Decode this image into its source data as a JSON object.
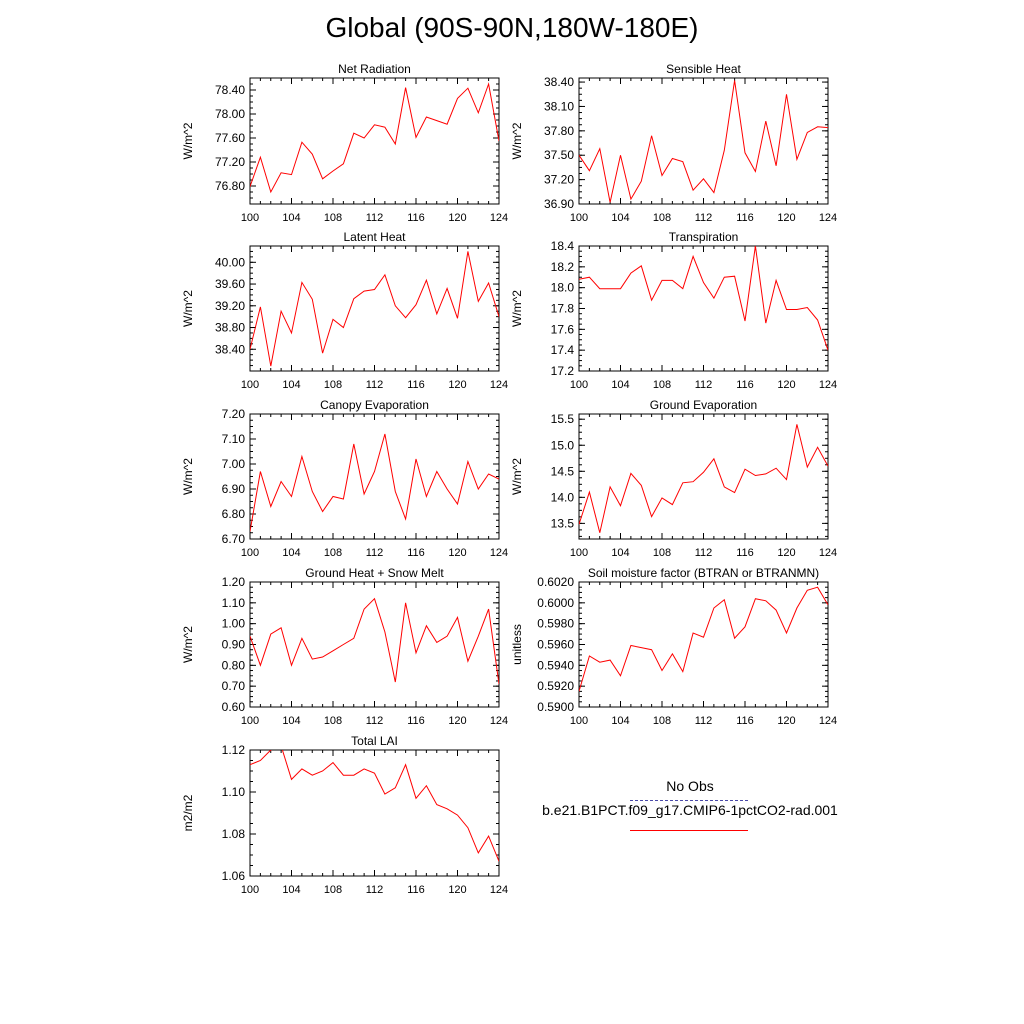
{
  "page": {
    "title": "Global (90S-90N,180W-180E)"
  },
  "legend": {
    "obs_label": "No Obs",
    "obs_color": "#4a4aa8",
    "model_label": "b.e21.B1PCT.f09_g17.CMIP6-1pctCO2-rad.001",
    "model_color": "#ff0000"
  },
  "chart_data": [
    {
      "type": "line",
      "title": "Net Radiation",
      "xlabel": "",
      "ylabel": "W/m^2",
      "xlim": [
        100,
        124
      ],
      "ylim": [
        76.5,
        78.6
      ],
      "xticks": [
        "100",
        "104",
        "108",
        "112",
        "116",
        "120",
        "124"
      ],
      "yticks": [
        "76.80",
        "77.20",
        "77.60",
        "78.00",
        "78.40"
      ],
      "x": [
        100,
        101,
        102,
        103,
        104,
        105,
        106,
        107,
        108,
        109,
        110,
        111,
        112,
        113,
        114,
        115,
        116,
        117,
        118,
        119,
        120,
        121,
        122,
        123,
        124
      ],
      "values": [
        76.79,
        77.28,
        76.7,
        77.02,
        76.99,
        77.53,
        77.33,
        76.92,
        77.05,
        77.17,
        77.68,
        77.6,
        77.82,
        77.78,
        77.5,
        78.44,
        77.61,
        77.95,
        77.89,
        77.83,
        78.26,
        78.43,
        78.02,
        78.5,
        77.55
      ]
    },
    {
      "type": "line",
      "title": "Sensible Heat",
      "xlabel": "",
      "ylabel": "W/m^2",
      "xlim": [
        100,
        124
      ],
      "ylim": [
        36.9,
        38.45
      ],
      "xticks": [
        "100",
        "104",
        "108",
        "112",
        "116",
        "120",
        "124"
      ],
      "yticks": [
        "36.90",
        "37.20",
        "37.50",
        "37.80",
        "38.10",
        "38.40"
      ],
      "x": [
        100,
        101,
        102,
        103,
        104,
        105,
        106,
        107,
        108,
        109,
        110,
        111,
        112,
        113,
        114,
        115,
        116,
        117,
        118,
        119,
        120,
        121,
        122,
        123,
        124
      ],
      "values": [
        37.5,
        37.31,
        37.58,
        36.92,
        37.5,
        36.96,
        37.18,
        37.74,
        37.25,
        37.46,
        37.42,
        37.07,
        37.21,
        37.04,
        37.56,
        38.42,
        37.53,
        37.3,
        37.92,
        37.37,
        38.25,
        37.45,
        37.78,
        37.85,
        37.84
      ]
    },
    {
      "type": "line",
      "title": "Latent Heat",
      "xlabel": "",
      "ylabel": "W/m^2",
      "xlim": [
        100,
        124
      ],
      "ylim": [
        38.0,
        40.3
      ],
      "xticks": [
        "100",
        "104",
        "108",
        "112",
        "116",
        "120",
        "124"
      ],
      "yticks": [
        "38.40",
        "38.80",
        "39.20",
        "39.60",
        "40.00"
      ],
      "x": [
        100,
        101,
        102,
        103,
        104,
        105,
        106,
        107,
        108,
        109,
        110,
        111,
        112,
        113,
        114,
        115,
        116,
        117,
        118,
        119,
        120,
        121,
        122,
        123,
        124
      ],
      "values": [
        38.4,
        39.18,
        38.09,
        39.1,
        38.7,
        39.63,
        39.32,
        38.33,
        38.95,
        38.8,
        39.33,
        39.47,
        39.5,
        39.77,
        39.2,
        38.98,
        39.22,
        39.67,
        39.05,
        39.52,
        38.97,
        40.2,
        39.28,
        39.62,
        39.0
      ]
    },
    {
      "type": "line",
      "title": "Transpiration",
      "xlabel": "",
      "ylabel": "W/m^2",
      "xlim": [
        100,
        124
      ],
      "ylim": [
        17.2,
        18.4
      ],
      "xticks": [
        "100",
        "104",
        "108",
        "112",
        "116",
        "120",
        "124"
      ],
      "yticks": [
        "17.2",
        "17.4",
        "17.6",
        "17.8",
        "18.0",
        "18.2",
        "18.4"
      ],
      "x": [
        100,
        101,
        102,
        103,
        104,
        105,
        106,
        107,
        108,
        109,
        110,
        111,
        112,
        113,
        114,
        115,
        116,
        117,
        118,
        119,
        120,
        121,
        122,
        123,
        124
      ],
      "values": [
        18.08,
        18.1,
        17.99,
        17.99,
        17.99,
        18.14,
        18.21,
        17.88,
        18.07,
        18.07,
        17.99,
        18.3,
        18.05,
        17.9,
        18.1,
        18.11,
        17.68,
        18.4,
        17.66,
        18.07,
        17.79,
        17.79,
        17.81,
        17.69,
        17.4
      ]
    },
    {
      "type": "line",
      "title": "Canopy Evaporation",
      "xlabel": "",
      "ylabel": "W/m^2",
      "xlim": [
        100,
        124
      ],
      "ylim": [
        6.7,
        7.2
      ],
      "xticks": [
        "100",
        "104",
        "108",
        "112",
        "116",
        "120",
        "124"
      ],
      "yticks": [
        "6.70",
        "6.80",
        "6.90",
        "7.00",
        "7.10",
        "7.20"
      ],
      "x": [
        100,
        101,
        102,
        103,
        104,
        105,
        106,
        107,
        108,
        109,
        110,
        111,
        112,
        113,
        114,
        115,
        116,
        117,
        118,
        119,
        120,
        121,
        122,
        123,
        124
      ],
      "values": [
        6.73,
        6.97,
        6.83,
        6.93,
        6.87,
        7.03,
        6.89,
        6.81,
        6.87,
        6.86,
        7.08,
        6.88,
        6.97,
        7.12,
        6.89,
        6.78,
        7.02,
        6.87,
        6.97,
        6.9,
        6.84,
        7.01,
        6.9,
        6.96,
        6.94
      ]
    },
    {
      "type": "line",
      "title": "Ground Evaporation",
      "xlabel": "",
      "ylabel": "W/m^2",
      "xlim": [
        100,
        124
      ],
      "ylim": [
        13.2,
        15.6
      ],
      "xticks": [
        "100",
        "104",
        "108",
        "112",
        "116",
        "120",
        "124"
      ],
      "yticks": [
        "13.5",
        "14.0",
        "14.5",
        "15.0",
        "15.5"
      ],
      "x": [
        100,
        101,
        102,
        103,
        104,
        105,
        106,
        107,
        108,
        109,
        110,
        111,
        112,
        113,
        114,
        115,
        116,
        117,
        118,
        119,
        120,
        121,
        122,
        123,
        124
      ],
      "values": [
        13.48,
        14.1,
        13.32,
        14.2,
        13.84,
        14.46,
        14.23,
        13.63,
        13.99,
        13.86,
        14.28,
        14.3,
        14.48,
        14.74,
        14.2,
        14.09,
        14.54,
        14.42,
        14.45,
        14.56,
        14.34,
        15.4,
        14.58,
        14.96,
        14.6
      ]
    },
    {
      "type": "line",
      "title": "Ground Heat + Snow Melt",
      "xlabel": "",
      "ylabel": "W/m^2",
      "xlim": [
        100,
        124
      ],
      "ylim": [
        0.6,
        1.2
      ],
      "xticks": [
        "100",
        "104",
        "108",
        "112",
        "116",
        "120",
        "124"
      ],
      "yticks": [
        "0.60",
        "0.70",
        "0.80",
        "0.90",
        "1.00",
        "1.10",
        "1.20"
      ],
      "x": [
        100,
        101,
        102,
        103,
        104,
        105,
        106,
        107,
        108,
        109,
        110,
        111,
        112,
        113,
        114,
        115,
        116,
        117,
        118,
        119,
        120,
        121,
        122,
        123,
        124
      ],
      "values": [
        0.94,
        0.8,
        0.95,
        0.98,
        0.8,
        0.93,
        0.83,
        0.84,
        0.87,
        0.9,
        0.93,
        1.07,
        1.12,
        0.96,
        0.72,
        1.1,
        0.86,
        0.99,
        0.91,
        0.94,
        1.03,
        0.82,
        0.94,
        1.07,
        0.71
      ]
    },
    {
      "type": "line",
      "title": "Soil moisture factor (BTRAN or BTRANMN)",
      "xlabel": "",
      "ylabel": "unitless",
      "xlim": [
        100,
        124
      ],
      "ylim": [
        0.59,
        0.602
      ],
      "xticks": [
        "100",
        "104",
        "108",
        "112",
        "116",
        "120",
        "124"
      ],
      "yticks": [
        "0.5900",
        "0.5920",
        "0.5940",
        "0.5960",
        "0.5980",
        "0.6000",
        "0.6020"
      ],
      "x": [
        100,
        101,
        102,
        103,
        104,
        105,
        106,
        107,
        108,
        109,
        110,
        111,
        112,
        113,
        114,
        115,
        116,
        117,
        118,
        119,
        120,
        121,
        122,
        123,
        124
      ],
      "values": [
        0.5915,
        0.5949,
        0.5943,
        0.5945,
        0.593,
        0.5959,
        0.5957,
        0.5955,
        0.5935,
        0.5951,
        0.5934,
        0.5971,
        0.5967,
        0.5995,
        0.6003,
        0.5966,
        0.5977,
        0.6004,
        0.6002,
        0.5993,
        0.5971,
        0.5995,
        0.6012,
        0.6015,
        0.5998
      ]
    },
    {
      "type": "line",
      "title": "Total LAI",
      "xlabel": "",
      "ylabel": "m2/m2",
      "xlim": [
        100,
        124
      ],
      "ylim": [
        1.06,
        1.12
      ],
      "xticks": [
        "100",
        "104",
        "108",
        "112",
        "116",
        "120",
        "124"
      ],
      "yticks": [
        "1.06",
        "1.08",
        "1.10",
        "1.12"
      ],
      "x": [
        100,
        101,
        102,
        103,
        104,
        105,
        106,
        107,
        108,
        109,
        110,
        111,
        112,
        113,
        114,
        115,
        116,
        117,
        118,
        119,
        120,
        121,
        122,
        123,
        124
      ],
      "values": [
        1.113,
        1.115,
        1.12,
        1.122,
        1.106,
        1.111,
        1.108,
        1.11,
        1.114,
        1.108,
        1.108,
        1.111,
        1.109,
        1.099,
        1.102,
        1.113,
        1.097,
        1.103,
        1.094,
        1.092,
        1.089,
        1.083,
        1.071,
        1.079,
        1.067
      ]
    }
  ]
}
